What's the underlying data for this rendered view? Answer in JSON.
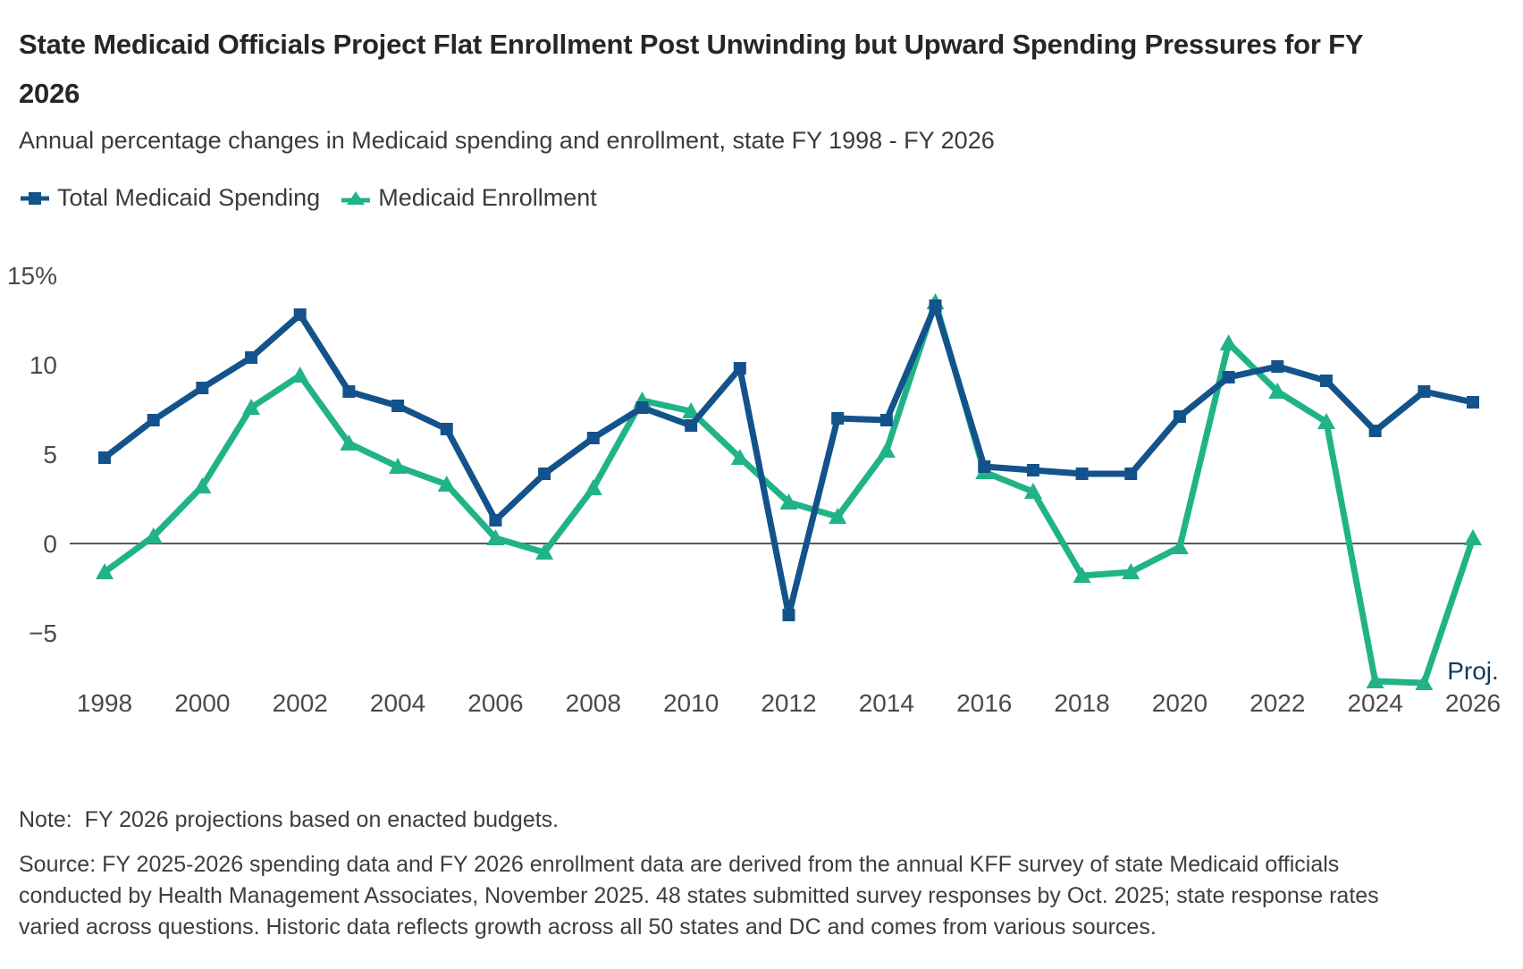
{
  "header": {
    "title": "State Medicaid Officials Project Flat Enrollment Post Unwinding but Upward Spending Pressures for FY 2026",
    "subtitle": "Annual percentage changes in Medicaid spending and enrollment, state FY 1998 - FY 2026"
  },
  "legend": [
    {
      "label": "Total Medicaid Spending",
      "color": "#14528C",
      "marker": "square"
    },
    {
      "label": "Medicaid Enrollment",
      "color": "#21B388",
      "marker": "triangle"
    }
  ],
  "chart_data": {
    "type": "line",
    "x": [
      1998,
      1999,
      2000,
      2001,
      2002,
      2003,
      2004,
      2005,
      2006,
      2007,
      2008,
      2009,
      2010,
      2011,
      2012,
      2013,
      2014,
      2015,
      2016,
      2017,
      2018,
      2019,
      2020,
      2021,
      2022,
      2023,
      2024,
      2025,
      2026
    ],
    "series": [
      {
        "name": "Total Medicaid Spending",
        "color": "#14528C",
        "marker": "square",
        "values": [
          4.8,
          6.9,
          8.7,
          10.4,
          12.8,
          8.5,
          7.7,
          6.4,
          1.3,
          3.9,
          5.9,
          7.6,
          6.6,
          9.8,
          -4.0,
          7.0,
          6.9,
          13.3,
          4.3,
          4.1,
          3.9,
          3.9,
          7.1,
          9.3,
          9.9,
          9.1,
          6.3,
          8.5,
          7.9
        ]
      },
      {
        "name": "Medicaid Enrollment",
        "color": "#21B388",
        "marker": "triangle",
        "values": [
          -1.6,
          0.4,
          3.2,
          7.6,
          9.4,
          5.6,
          4.3,
          3.3,
          0.3,
          -0.5,
          3.1,
          8.0,
          7.4,
          4.8,
          2.3,
          1.5,
          5.2,
          13.5,
          4.0,
          2.9,
          -1.8,
          -1.6,
          -0.2,
          11.2,
          8.5,
          6.8,
          -7.7,
          -7.8,
          0.3
        ]
      }
    ],
    "y_ticks": [
      {
        "value": 15,
        "label": "15%"
      },
      {
        "value": 10,
        "label": "10"
      },
      {
        "value": 5,
        "label": "5"
      },
      {
        "value": 0,
        "label": "0"
      },
      {
        "value": -5,
        "label": "−5"
      }
    ],
    "x_ticks": [
      1998,
      2000,
      2002,
      2004,
      2006,
      2008,
      2010,
      2012,
      2014,
      2016,
      2018,
      2020,
      2022,
      2024,
      2026
    ],
    "last_tick_annotation": "Proj.",
    "last_tick_annotation_color": "#113A5C",
    "ylim": [
      -9.5,
      15.5
    ],
    "grid": "zero-line-only",
    "zero_line_color": "#58595B",
    "tick_label_color": "#4a4a4a",
    "legend_position": "top-left"
  },
  "footer": {
    "note": "Note:  FY 2026 projections based on enacted budgets.",
    "source": "Source: FY 2025-2026 spending data and FY 2026 enrollment data are derived from the annual KFF survey of state Medicaid officials conducted by Health Management Associates, November 2025. 48 states submitted survey responses by Oct. 2025; state response rates varied across questions. Historic data reflects growth across all 50 states and DC and comes from various sources."
  }
}
